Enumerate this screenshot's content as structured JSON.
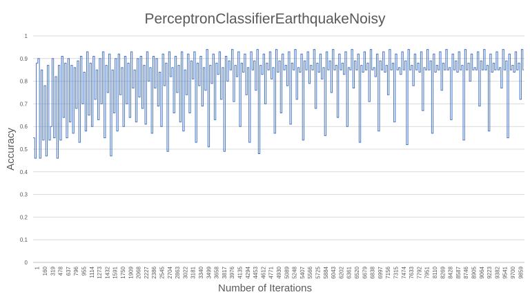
{
  "chart_data": {
    "type": "line",
    "title": "PerceptronClassifierEarthquakeNoisy",
    "xlabel": "Number of Iterations",
    "ylabel": "Accuracy",
    "ylim": [
      0,
      1
    ],
    "xlim": [
      1,
      10000
    ],
    "grid": true,
    "legend": "none",
    "y_ticks": [
      "0",
      "0.1",
      "0.2",
      "0.3",
      "0.4",
      "0.5",
      "0.6",
      "0.7",
      "0.8",
      "0.9",
      "1"
    ],
    "x_ticks": [
      "1",
      "160",
      "319",
      "478",
      "637",
      "796",
      "955",
      "1114",
      "1273",
      "1432",
      "1591",
      "1750",
      "1909",
      "2068",
      "2227",
      "2386",
      "2545",
      "2704",
      "2863",
      "3022",
      "3181",
      "3340",
      "3499",
      "3658",
      "3817",
      "3976",
      "4135",
      "4294",
      "4453",
      "4612",
      "4771",
      "4930",
      "5089",
      "5248",
      "5407",
      "5566",
      "5725",
      "5884",
      "6043",
      "6202",
      "6361",
      "6520",
      "6679",
      "6838",
      "6997",
      "7156",
      "7315",
      "7474",
      "7633",
      "7792",
      "7951",
      "8110",
      "8269",
      "8428",
      "8587",
      "8746",
      "8905",
      "9064",
      "9223",
      "9382",
      "9541",
      "9700",
      "9859"
    ],
    "series": [
      {
        "color": "#4472c4",
        "values": [
          0.55,
          0.46,
          0.88,
          0.9,
          0.46,
          0.85,
          0.54,
          0.78,
          0.47,
          0.87,
          0.54,
          0.6,
          0.9,
          0.55,
          0.82,
          0.46,
          0.87,
          0.54,
          0.91,
          0.64,
          0.88,
          0.55,
          0.9,
          0.62,
          0.87,
          0.57,
          0.86,
          0.68,
          0.89,
          0.53,
          0.91,
          0.7,
          0.84,
          0.58,
          0.93,
          0.65,
          0.88,
          0.6,
          0.91,
          0.72,
          0.85,
          0.63,
          0.9,
          0.7,
          0.93,
          0.55,
          0.87,
          0.75,
          0.92,
          0.47,
          0.85,
          0.66,
          0.9,
          0.58,
          0.92,
          0.74,
          0.86,
          0.6,
          0.91,
          0.7,
          0.88,
          0.64,
          0.93,
          0.77,
          0.85,
          0.62,
          0.9,
          0.73,
          0.91,
          0.68,
          0.87,
          0.61,
          0.93,
          0.8,
          0.86,
          0.57,
          0.91,
          0.77,
          0.9,
          0.69,
          0.84,
          0.6,
          0.92,
          0.78,
          0.88,
          0.49,
          0.93,
          0.82,
          0.86,
          0.66,
          0.91,
          0.75,
          0.87,
          0.62,
          0.93,
          0.58,
          0.85,
          0.74,
          0.92,
          0.66,
          0.89,
          0.81,
          0.93,
          0.53,
          0.88,
          0.78,
          0.91,
          0.69,
          0.86,
          0.76,
          0.94,
          0.51,
          0.87,
          0.79,
          0.92,
          0.63,
          0.88,
          0.83,
          0.93,
          0.72,
          0.86,
          0.49,
          0.91,
          0.8,
          0.89,
          0.85,
          0.94,
          0.71,
          0.87,
          0.82,
          0.93,
          0.6,
          0.88,
          0.84,
          0.92,
          0.74,
          0.86,
          0.53,
          0.93,
          0.85,
          0.89,
          0.76,
          0.94,
          0.48,
          0.87,
          0.83,
          0.92,
          0.7,
          0.88,
          0.85,
          0.93,
          0.81,
          0.86,
          0.57,
          0.94,
          0.84,
          0.89,
          0.66,
          0.92,
          0.85,
          0.87,
          0.78,
          0.93,
          0.61,
          0.88,
          0.85,
          0.94,
          0.72,
          0.86,
          0.84,
          0.92,
          0.54,
          0.89,
          0.85,
          0.93,
          0.79,
          0.87,
          0.85,
          0.94,
          0.68,
          0.88,
          0.84,
          0.92,
          0.81,
          0.86,
          0.56,
          0.93,
          0.85,
          0.89,
          0.75,
          0.94,
          0.85,
          0.87,
          0.64,
          0.92,
          0.85,
          0.88,
          0.83,
          0.93,
          0.6,
          0.86,
          0.85,
          0.94,
          0.77,
          0.89,
          0.85,
          0.92,
          0.53,
          0.87,
          0.84,
          0.93,
          0.85,
          0.88,
          0.71,
          0.94,
          0.85,
          0.86,
          0.82,
          0.92,
          0.58,
          0.89,
          0.85,
          0.93,
          0.84,
          0.87,
          0.74,
          0.94,
          0.85,
          0.88,
          0.62,
          0.92,
          0.85,
          0.86,
          0.83,
          0.93,
          0.85,
          0.89,
          0.52,
          0.94,
          0.85,
          0.87,
          0.78,
          0.92,
          0.85,
          0.88,
          0.84,
          0.93,
          0.67,
          0.86,
          0.85,
          0.94,
          0.85,
          0.89,
          0.57,
          0.92,
          0.84,
          0.87,
          0.85,
          0.93,
          0.76,
          0.88,
          0.85,
          0.94,
          0.85,
          0.86,
          0.63,
          0.92,
          0.85,
          0.89,
          0.84,
          0.93,
          0.85,
          0.87,
          0.54,
          0.94,
          0.85,
          0.88,
          0.8,
          0.92,
          0.85,
          0.86,
          0.85,
          0.93,
          0.69,
          0.89,
          0.85,
          0.94,
          0.85,
          0.87,
          0.58,
          0.92,
          0.84,
          0.88,
          0.85,
          0.93,
          0.85,
          0.86,
          0.77,
          0.94,
          0.85,
          0.89,
          0.55,
          0.92,
          0.85,
          0.87,
          0.84,
          0.93,
          0.85,
          0.88,
          0.72,
          0.94,
          0.85
        ]
      }
    ]
  }
}
